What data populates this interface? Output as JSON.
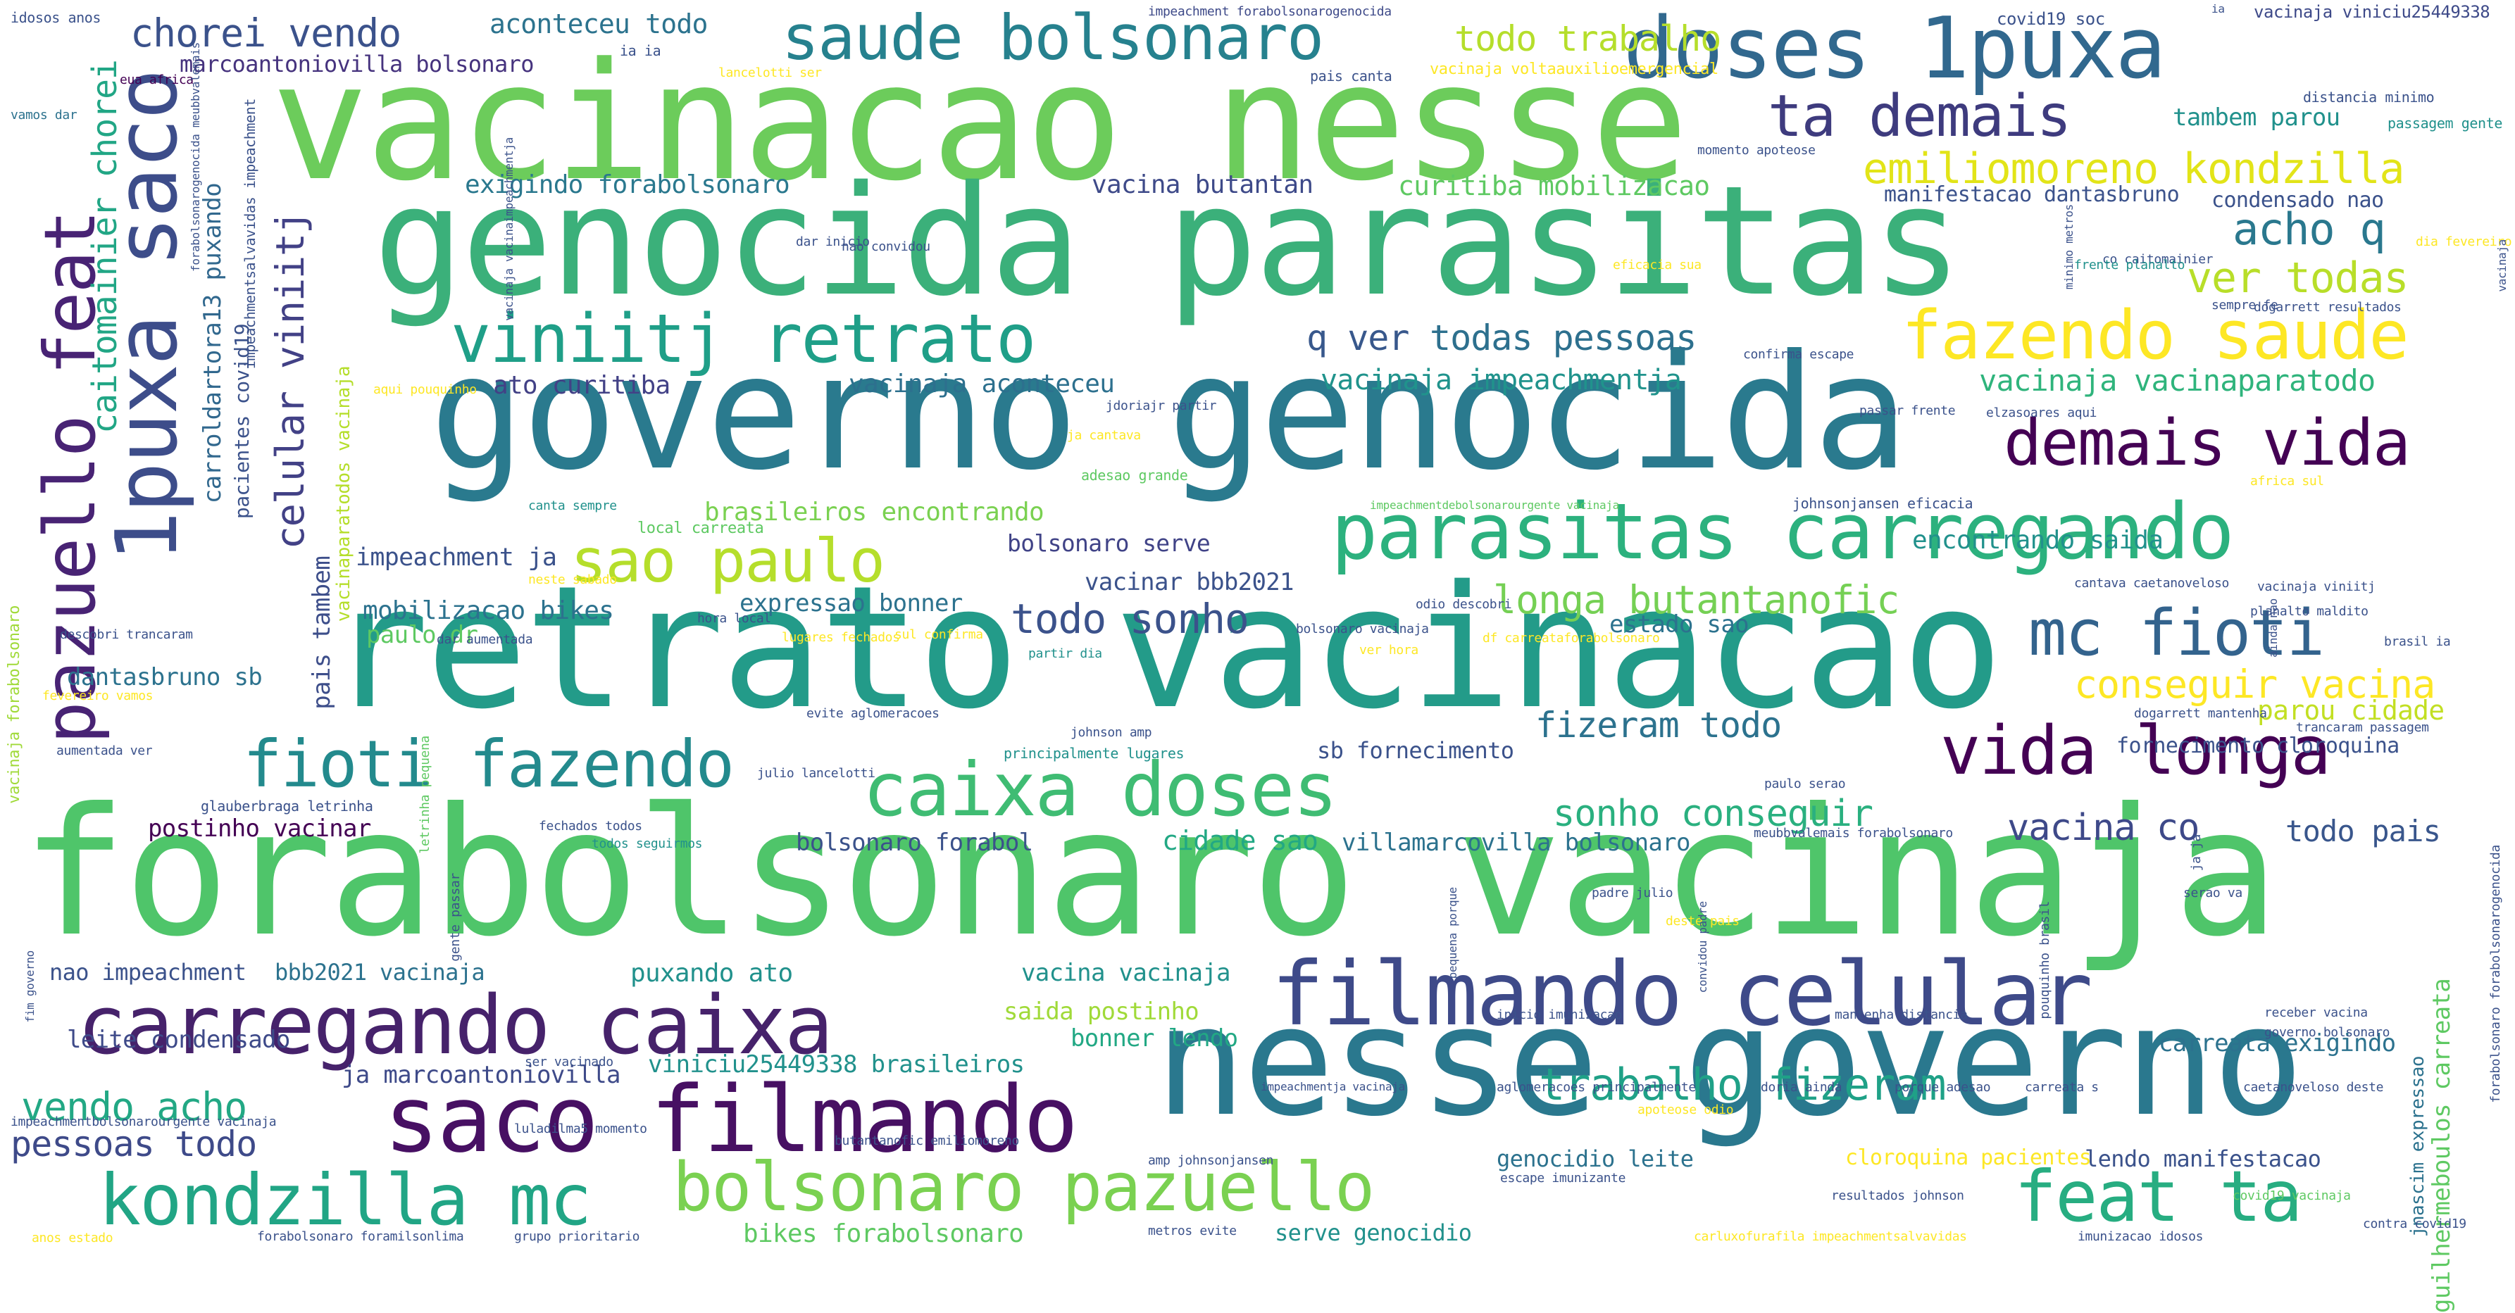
{
  "palette": [
    "#440154",
    "#3b528b",
    "#21908d",
    "#5dc863",
    "#fde725"
  ],
  "words": [
    {
      "text": "forabolsonaro vacinaja",
      "color": "#4fc56a"
    },
    {
      "text": "vacinacao nesse",
      "color": "#6ccc5b"
    },
    {
      "text": "genocida parasitas",
      "color": "#3bb07a"
    },
    {
      "text": "governo genocida",
      "color": "#2a7a8e"
    },
    {
      "text": "retrato vacinacao",
      "color": "#239b89"
    },
    {
      "text": "nesse governo",
      "color": "#2a788e"
    },
    {
      "text": "doses 1puxa",
      "color": "#31688e"
    },
    {
      "text": "parasitas carregando",
      "color": "#2cb17e"
    },
    {
      "text": "filmando celular",
      "color": "#3e4a89"
    },
    {
      "text": "carregando caixa",
      "color": "#46226b"
    },
    {
      "text": "saco filmando",
      "color": "#471063"
    },
    {
      "text": "bolsonaro pazuello",
      "color": "#7ad151"
    },
    {
      "text": "kondzilla mc",
      "color": "#21a585"
    },
    {
      "text": "feat ta",
      "color": "#27ad81"
    },
    {
      "text": "caixa doses",
      "color": "#3fbc73"
    },
    {
      "text": "fioti fazendo",
      "color": "#238a8d"
    },
    {
      "text": "vida longa",
      "color": "#440154"
    },
    {
      "text": "mc fioti",
      "color": "#33638d"
    },
    {
      "text": "fazendo saude",
      "color": "#fde725"
    },
    {
      "text": "demais vida",
      "color": "#440154"
    },
    {
      "text": "viniitj retrato",
      "color": "#1f9f88"
    },
    {
      "text": "saude bolsonaro",
      "color": "#26818e"
    },
    {
      "text": "ta demais",
      "color": "#3e3b7e"
    },
    {
      "text": "sao paulo",
      "color": "#b5de2b"
    },
    {
      "text": "1puxa saco",
      "color": "#3d4d8a"
    },
    {
      "text": "pazuello feat",
      "color": "#482374"
    },
    {
      "text": "todo trabalho",
      "color": "#b5de2b"
    },
    {
      "text": "chorei vendo",
      "color": "#3b528b"
    },
    {
      "text": "emiliomoreno kondzilla",
      "color": "#e2e418"
    },
    {
      "text": "acho q",
      "color": "#2a788e"
    },
    {
      "text": "ver todas",
      "color": "#b8de29"
    },
    {
      "text": "q ver",
      "color": "#38588c"
    },
    {
      "text": "todas pessoas",
      "color": "#2d708e"
    },
    {
      "text": "vacinaja vacinaparatodo",
      "color": "#2fb47c"
    },
    {
      "text": "longa butantanofic",
      "color": "#75d054"
    },
    {
      "text": "todo sonho",
      "color": "#3b528b"
    },
    {
      "text": "conseguir vacina",
      "color": "#fde725"
    },
    {
      "text": "parou cidade",
      "color": "#c2df23"
    },
    {
      "text": "fizeram todo",
      "color": "#2c728e"
    },
    {
      "text": "sonho conseguir",
      "color": "#2ab07f"
    },
    {
      "text": "vacina co",
      "color": "#3e4989"
    },
    {
      "text": "todo pais",
      "color": "#39568c"
    },
    {
      "text": "trabalho fizeram",
      "color": "#1fa187"
    },
    {
      "text": "vendo acho",
      "color": "#22a884"
    },
    {
      "text": "pessoas todo",
      "color": "#3e4a89"
    },
    {
      "text": "celular viniitj",
      "color": "#424186"
    },
    {
      "text": "caitomainier chorei",
      "color": "#21a685"
    },
    {
      "text": "carroldartora13 puxando",
      "color": "#31688e"
    },
    {
      "text": "aconteceu todo",
      "color": "#2c738e"
    },
    {
      "text": "marcoantoniovilla bolsonaro",
      "color": "#46337e"
    },
    {
      "text": "exigindo forabolsonaro",
      "color": "#2a788e"
    },
    {
      "text": "vacina butantan",
      "color": "#3e4a89"
    },
    {
      "text": "curitiba mobilizacao",
      "color": "#5ec962"
    },
    {
      "text": "ato curitiba",
      "color": "#424186"
    },
    {
      "text": "vacinaja aconteceu",
      "color": "#2d708e"
    },
    {
      "text": "vacinaja impeachmentja",
      "color": "#20938c"
    },
    {
      "text": "impeachment ja",
      "color": "#3b528b"
    },
    {
      "text": "brasileiros encontrando",
      "color": "#7ad151"
    },
    {
      "text": "bolsonaro serve",
      "color": "#404387"
    },
    {
      "text": "vacinar bbb2021",
      "color": "#3b528b"
    },
    {
      "text": "mobilizacao bikes",
      "color": "#2c728e"
    },
    {
      "text": "expressao bonner",
      "color": "#2c728e"
    },
    {
      "text": "paulo dr",
      "color": "#5ec962"
    },
    {
      "text": "dantasbruno sb",
      "color": "#2c728e"
    },
    {
      "text": "pais tambem",
      "color": "#3d4e8a"
    },
    {
      "text": "postinho vacinar",
      "color": "#440154"
    },
    {
      "text": "bolsonaro forabol",
      "color": "#3b528b"
    },
    {
      "text": "cidade sao",
      "color": "#22a884"
    },
    {
      "text": "villamarcovilla bolsonaro",
      "color": "#2c728e"
    },
    {
      "text": "nao impeachment",
      "color": "#3b528b"
    },
    {
      "text": "bbb2021 vacinaja",
      "color": "#2c728e"
    },
    {
      "text": "puxando ato",
      "color": "#21918c"
    },
    {
      "text": "vacina vacinaja",
      "color": "#21918c"
    },
    {
      "text": "saida postinho",
      "color": "#a0da39"
    },
    {
      "text": "bonner lendo",
      "color": "#22a884"
    },
    {
      "text": "leite condensado",
      "color": "#3e4a89"
    },
    {
      "text": "ja marcoantoniovilla",
      "color": "#3e4a89"
    },
    {
      "text": "viniciu25449338 brasileiros",
      "color": "#21918c"
    },
    {
      "text": "bikes forabolsonaro",
      "color": "#5ec962"
    },
    {
      "text": "serve genocidio",
      "color": "#21918c"
    },
    {
      "text": "genocidio leite",
      "color": "#2c728e"
    },
    {
      "text": "cloroquina pacientes",
      "color": "#fde725"
    },
    {
      "text": "lendo manifestacao",
      "color": "#3b528b"
    },
    {
      "text": "carreata exigindo",
      "color": "#2c728e"
    },
    {
      "text": "fornecimento cloroquina",
      "color": "#3b528b"
    },
    {
      "text": "sb fornecimento",
      "color": "#3b528b"
    },
    {
      "text": "estado sao",
      "color": "#2c728e"
    },
    {
      "text": "encontrando saida",
      "color": "#21918c"
    },
    {
      "text": "manifestacao dantasbruno",
      "color": "#3b528b"
    },
    {
      "text": "condensado nao",
      "color": "#3b528b"
    },
    {
      "text": "tambem parou",
      "color": "#21918c"
    },
    {
      "text": "guilhermeboulos carreata",
      "color": "#5ec962"
    },
    {
      "text": "jnascim expressao",
      "color": "#2c728e"
    },
    {
      "text": "vacinaja forabolsonaro",
      "color": "#a0da39"
    },
    {
      "text": "vacinaparatodos vacinaja",
      "color": "#b5de2b"
    },
    {
      "text": "pacientes covid19",
      "color": "#3b528b"
    },
    {
      "text": "impeachmentsalvavidas impeachment",
      "color": "#3b528b"
    },
    {
      "text": "idosos anos",
      "color": "#3b528b"
    },
    {
      "text": "impeachment forabolsonarogenocida",
      "color": "#3e4a89"
    },
    {
      "text": "covid19 soc",
      "color": "#3b528b"
    },
    {
      "text": "vacinaja viniciu25449338",
      "color": "#3e4a89"
    },
    {
      "text": "vacinaja voltaauxilioemergencial",
      "color": "#fde725"
    },
    {
      "text": "pais canta",
      "color": "#3b528b"
    },
    {
      "text": "eua africa",
      "color": "#440154"
    },
    {
      "text": "vamos dar",
      "color": "#2c728e"
    },
    {
      "text": "lancelotti ser",
      "color": "#fde725"
    },
    {
      "text": "ia ia",
      "color": "#3b528b"
    },
    {
      "text": "distancia minimo",
      "color": "#3b528b"
    },
    {
      "text": "passagem gente",
      "color": "#21918c"
    },
    {
      "text": "momento apoteose",
      "color": "#3b528b"
    },
    {
      "text": "dar inicio",
      "color": "#3b528b"
    },
    {
      "text": "co caitomainier",
      "color": "#3b528b"
    },
    {
      "text": "dia fevereiro",
      "color": "#fde725"
    },
    {
      "text": "nao convidou",
      "color": "#3b528b"
    },
    {
      "text": "eficacia sua",
      "color": "#fde725"
    },
    {
      "text": "frente planalto",
      "color": "#21918c"
    },
    {
      "text": "sempre fe",
      "color": "#3b528b"
    },
    {
      "text": "dogarrett resultados",
      "color": "#3b528b"
    },
    {
      "text": "confirma escape",
      "color": "#3b528b"
    },
    {
      "text": "aqui pouquinho",
      "color": "#fde725"
    },
    {
      "text": "jdoriajr partir",
      "color": "#3b528b"
    },
    {
      "text": "ja cantava",
      "color": "#fde725"
    },
    {
      "text": "passar frente",
      "color": "#3b528b"
    },
    {
      "text": "elzasoares aqui",
      "color": "#3b528b"
    },
    {
      "text": "adesao grande",
      "color": "#5ec962"
    },
    {
      "text": "africa sul",
      "color": "#fde725"
    },
    {
      "text": "canta sempre",
      "color": "#21918c"
    },
    {
      "text": "local carreata",
      "color": "#5ec962"
    },
    {
      "text": "impeachmentdebolsonarourgente vacinaja",
      "color": "#5ec962"
    },
    {
      "text": "johnsonjansen eficacia",
      "color": "#3b528b"
    },
    {
      "text": "neste sabado",
      "color": "#fde725"
    },
    {
      "text": "hora local",
      "color": "#3b528b"
    },
    {
      "text": "odio descobri",
      "color": "#3b528b"
    },
    {
      "text": "cantava caetanoveloso",
      "color": "#3b528b"
    },
    {
      "text": "vacinaja viniitj",
      "color": "#3b528b"
    },
    {
      "text": "planalto maldito",
      "color": "#3b528b"
    },
    {
      "text": "descobri trancaram",
      "color": "#3b528b"
    },
    {
      "text": "dar aumentada",
      "color": "#3b528b"
    },
    {
      "text": "lugares fechados",
      "color": "#fde725"
    },
    {
      "text": "sul confirma",
      "color": "#fde725"
    },
    {
      "text": "bolsonaro vacinaja",
      "color": "#3b528b"
    },
    {
      "text": "df carreataforabolsonaro",
      "color": "#fde725"
    },
    {
      "text": "brasil ia",
      "color": "#3b528b"
    },
    {
      "text": "fevereiro vamos",
      "color": "#fde725"
    },
    {
      "text": "partir dia",
      "color": "#21918c"
    },
    {
      "text": "ver hora",
      "color": "#fde725"
    },
    {
      "text": "dogarrett mantenha",
      "color": "#3b528b"
    },
    {
      "text": "aumentada ver",
      "color": "#3b528b"
    },
    {
      "text": "evite aglomeracoes",
      "color": "#3b528b"
    },
    {
      "text": "principalmente lugares",
      "color": "#21918c"
    },
    {
      "text": "trancaram passagem",
      "color": "#3b528b"
    },
    {
      "text": "johnson amp",
      "color": "#3b528b"
    },
    {
      "text": "julio lancelotti",
      "color": "#3b528b"
    },
    {
      "text": "paulo serao",
      "color": "#3b528b"
    },
    {
      "text": "glauberbraga letrinha",
      "color": "#3b528b"
    },
    {
      "text": "fechados todos",
      "color": "#3b528b"
    },
    {
      "text": "todos seguirmos",
      "color": "#21918c"
    },
    {
      "text": "meubbvalemais forabolsonaro",
      "color": "#3b528b"
    },
    {
      "text": "padre julio",
      "color": "#3b528b"
    },
    {
      "text": "deste pais",
      "color": "#fde725"
    },
    {
      "text": "serao va",
      "color": "#3b528b"
    },
    {
      "text": "gente passar",
      "color": "#3b528b"
    },
    {
      "text": "inicio imunizacao",
      "color": "#3b528b"
    },
    {
      "text": "mantenha distancia",
      "color": "#3b528b"
    },
    {
      "text": "receber vacina",
      "color": "#3b528b"
    },
    {
      "text": "governo bolsonaro",
      "color": "#3b528b"
    },
    {
      "text": "ser vacinado",
      "color": "#3b528b"
    },
    {
      "text": "impeachmentja vacinaja",
      "color": "#3b528b"
    },
    {
      "text": "aglomeracoes principalmente",
      "color": "#3b528b"
    },
    {
      "text": "doria ainda",
      "color": "#3b528b"
    },
    {
      "text": "porque adesao",
      "color": "#3b528b"
    },
    {
      "text": "carreata s",
      "color": "#3b528b"
    },
    {
      "text": "caetanoveloso deste",
      "color": "#3b528b"
    },
    {
      "text": "impeachmentbolsonarourgente vacinaja",
      "color": "#3b528b"
    },
    {
      "text": "luladilma5 momento",
      "color": "#3b528b"
    },
    {
      "text": "butantanofic emiliomoreno",
      "color": "#3b528b"
    },
    {
      "text": "amp johnsonjansen",
      "color": "#3b528b"
    },
    {
      "text": "escape imunizante",
      "color": "#3b528b"
    },
    {
      "text": "apoteose odio",
      "color": "#fde725"
    },
    {
      "text": "resultados johnson",
      "color": "#3b528b"
    },
    {
      "text": "covid19 vacinaja",
      "color": "#5ec962"
    },
    {
      "text": "metros evite",
      "color": "#3b528b"
    },
    {
      "text": "forabolsonaro foramilsonlima",
      "color": "#3b528b"
    },
    {
      "text": "grupo prioritario",
      "color": "#3b528b"
    },
    {
      "text": "anos estado",
      "color": "#fde725"
    },
    {
      "text": "carluxofurafila impeachmentsalvavidas",
      "color": "#fde725"
    },
    {
      "text": "imunizacao idosos",
      "color": "#3b528b"
    },
    {
      "text": "contra covid19",
      "color": "#3b528b"
    },
    {
      "text": "fim governo",
      "color": "#3b528b"
    },
    {
      "text": "minimo metros",
      "color": "#3b528b"
    },
    {
      "text": "ainda nao",
      "color": "#3b528b"
    },
    {
      "text": "convidou padre",
      "color": "#3b528b"
    },
    {
      "text": "pouquinho brasil",
      "color": "#3b528b"
    },
    {
      "text": "pequena porque",
      "color": "#3b528b"
    },
    {
      "text": "letrinha pequena",
      "color": "#5ec962"
    },
    {
      "text": "ja ja",
      "color": "#3b528b"
    },
    {
      "text": "forabolsonarogenocida meubbvalemais",
      "color": "#3b528b"
    },
    {
      "text": "vacinaja vacinaimpeachmentja",
      "color": "#3b528b"
    },
    {
      "text": "forabolsonaro forabolsonarogenocida",
      "color": "#3b528b"
    },
    {
      "text": "vacinaja",
      "color": "#3b528b"
    },
    {
      "text": "ia",
      "color": "#3b528b"
    }
  ]
}
